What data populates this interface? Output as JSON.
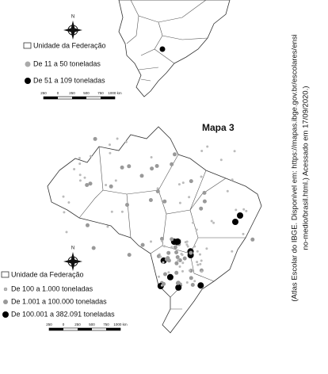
{
  "map1": {
    "compass": "N",
    "legend": [
      "Unidade da Federação",
      "De 11 a 50 toneladas",
      "De 51 a 109 toneladas"
    ],
    "scale_labels": [
      "250",
      "0",
      "250",
      "500",
      "750",
      "1000 km"
    ]
  },
  "map2": {
    "title": "Mapa 3",
    "compass": "N",
    "legend": [
      "Unidade da Federação",
      "De 100 a 1.000 toneladas",
      "De 1.001 a 100.000 toneladas",
      "De 100.001 a 382.091 toneladas"
    ],
    "scale_labels": [
      "250",
      "0",
      "250",
      "500",
      "750",
      "1000 km"
    ]
  },
  "source": [
    "(Atlas Escolar do IBGE. Disponível em: https://mapas.ibge.gov.br/escolares/ensi",
    "no-medio/brasil.html.) Acessado em 17/09/2020.)"
  ]
}
